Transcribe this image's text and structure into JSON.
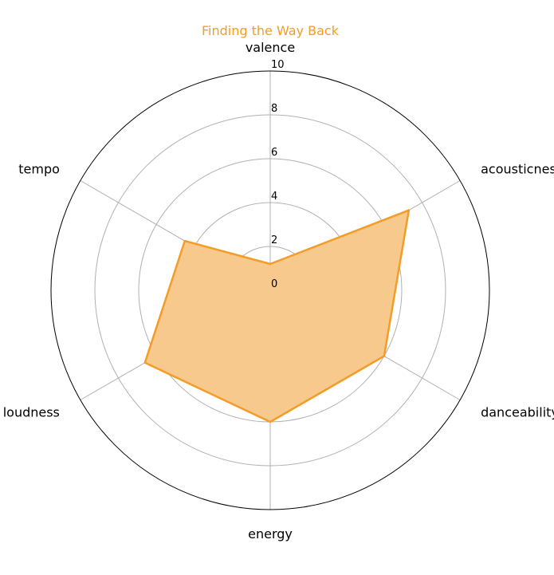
{
  "chart_data": {
    "type": "radar",
    "title": "Finding the Way Back",
    "axes": [
      "valence",
      "acousticness",
      "danceability",
      "energy",
      "loudness",
      "tempo"
    ],
    "rlim": [
      0,
      10
    ],
    "rticks": [
      "0",
      "2",
      "4",
      "6",
      "8",
      "10"
    ],
    "grid": true,
    "series": [
      {
        "values": [
          1.2,
          7.3,
          6.0,
          6.0,
          6.6,
          4.5
        ]
      }
    ]
  },
  "colors": {
    "title": "#f39c27",
    "line": "#f39c27",
    "fill": "#f7c98c"
  }
}
